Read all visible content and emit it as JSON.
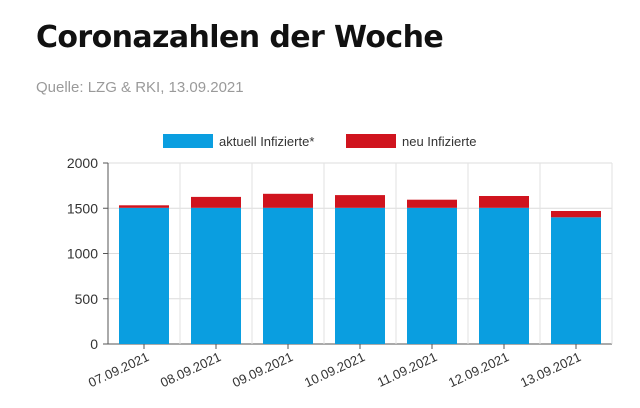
{
  "header": {
    "title": "Coronazahlen der Woche",
    "source": "Quelle: LZG & RKI, 13.09.2021"
  },
  "chart_data": {
    "type": "bar",
    "stacked": true,
    "categories": [
      "07.09.2021",
      "08.09.2021",
      "09.09.2021",
      "10.09.2021",
      "11.09.2021",
      "12.09.2021",
      "13.09.2021"
    ],
    "series": [
      {
        "name": "aktuell Infizierte*",
        "color": "#0a9ee0",
        "values": [
          1505,
          1505,
          1505,
          1505,
          1505,
          1505,
          1400
        ]
      },
      {
        "name": "neu Infizierte",
        "color": "#d0141e",
        "values": [
          28,
          120,
          155,
          140,
          90,
          130,
          70
        ]
      }
    ],
    "y_ticks": [
      "0",
      "500",
      "1000",
      "1500",
      "2000"
    ],
    "ylim": [
      0,
      2000
    ],
    "grid": true,
    "legend_position": "top-center"
  }
}
